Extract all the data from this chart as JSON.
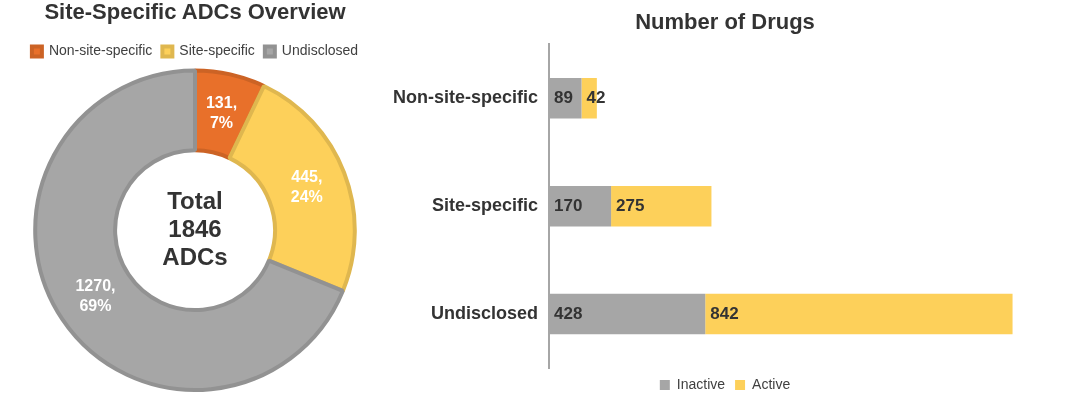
{
  "chart_data": [
    {
      "type": "donut",
      "title": "Site-Specific ADCs Overview",
      "categories": [
        "Non-site-specific",
        "Site-specific",
        "Undisclosed"
      ],
      "values": [
        131,
        445,
        1270
      ],
      "colors": [
        "#e8702a",
        "#fdd05a",
        "#a6a6a6"
      ],
      "value_labels": [
        "131, 7%",
        "445, 24%",
        "1270, 69%"
      ],
      "annotations": [
        "Total 1846 ADCs"
      ],
      "legend": "top"
    },
    {
      "type": "bar",
      "title": "Number of Drugs",
      "orientation": "horizontal",
      "stacked": true,
      "categories": [
        "Non-site-specific",
        "Site-specific",
        "Undisclosed"
      ],
      "series": [
        {
          "name": "Inactive",
          "color": "#a6a6a6",
          "values": [
            89,
            170,
            428
          ]
        },
        {
          "name": "Active",
          "color": "#fdd05a",
          "values": [
            42,
            275,
            842
          ]
        }
      ],
      "data_labels": true,
      "legend": "bottom",
      "tick_labels": "y"
    }
  ]
}
